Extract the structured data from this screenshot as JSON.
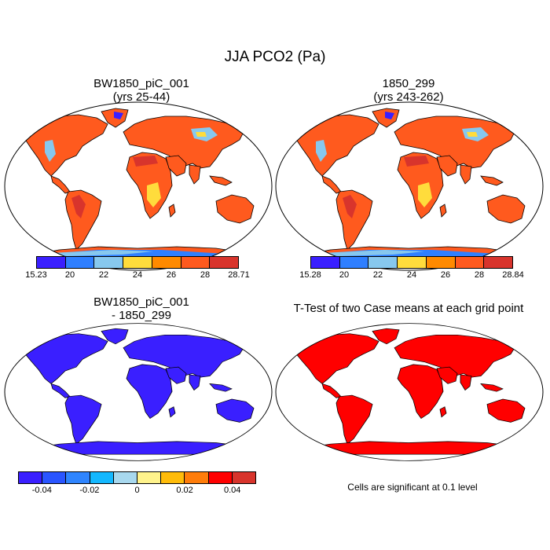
{
  "figure": {
    "title": "JJA PCO2 (Pa)"
  },
  "panels": [
    {
      "id": "tl",
      "title_line1": "BW1850_piC_001",
      "title_line2": "(yrs 25-44)",
      "colorbar": {
        "labels": [
          "15.23",
          "20",
          "22",
          "24",
          "26",
          "28",
          "28.71"
        ],
        "colors": [
          "#3a1fff",
          "#2f7fff",
          "#87c8ee",
          "#ffdc3c",
          "#ff8a00",
          "#ff5a1e",
          "#d8342c"
        ]
      }
    },
    {
      "id": "tr",
      "title_line1": "1850_299",
      "title_line2": "(yrs 243-262)",
      "colorbar": {
        "labels": [
          "15.28",
          "20",
          "22",
          "24",
          "26",
          "28",
          "28.84"
        ],
        "colors": [
          "#3a1fff",
          "#2f7fff",
          "#87c8ee",
          "#ffdc3c",
          "#ff8a00",
          "#ff5a1e",
          "#d8342c"
        ]
      }
    },
    {
      "id": "bl",
      "title_line1": "BW1850_piC_001",
      "title_line2": "- 1850_299",
      "colorbar": {
        "labels": [
          "-0.04",
          "-0.02",
          "0",
          "0.02",
          "0.04"
        ],
        "colors": [
          "#3a1fff",
          "#2a55ff",
          "#2f85ff",
          "#14b8ff",
          "#a8d8ee",
          "#fff38c",
          "#ffbc0a",
          "#ff7d0a",
          "#ff0000",
          "#d8342c"
        ]
      }
    },
    {
      "id": "br",
      "title_line1": "T-Test of two Case means at each grid point",
      "note": "Cells are significant at 0.1 level"
    }
  ],
  "map_colors": {
    "land_orange": "#ff5a1e",
    "land_deep_red": "#d8342c",
    "land_yellow": "#ffdc3c",
    "land_blue": "#87c8ee",
    "diff_blue": "#3a1fff",
    "ttest_red": "#ff0000"
  }
}
